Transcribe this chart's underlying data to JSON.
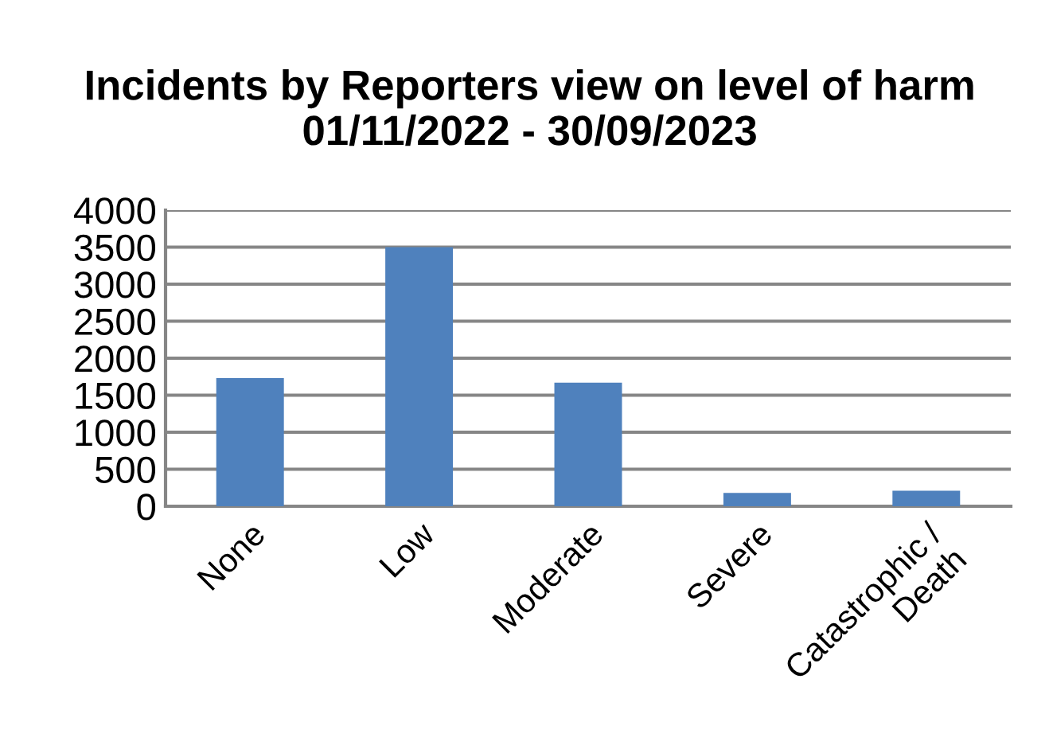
{
  "chart_data": {
    "type": "bar",
    "title": "Incidents by Reporters view on level of harm 01/11/2022 - 30/09/2023",
    "categories": [
      "None",
      "Low",
      "Moderate",
      "Severe",
      "Catastrophic /\nDeath"
    ],
    "values": [
      1730,
      3500,
      1670,
      180,
      210
    ],
    "color": "#4f81bd",
    "ylim": [
      0,
      4000
    ],
    "yticks": [
      0,
      500,
      1000,
      1500,
      2000,
      2500,
      3000,
      3500,
      4000
    ],
    "grid": "y",
    "legend": false
  }
}
